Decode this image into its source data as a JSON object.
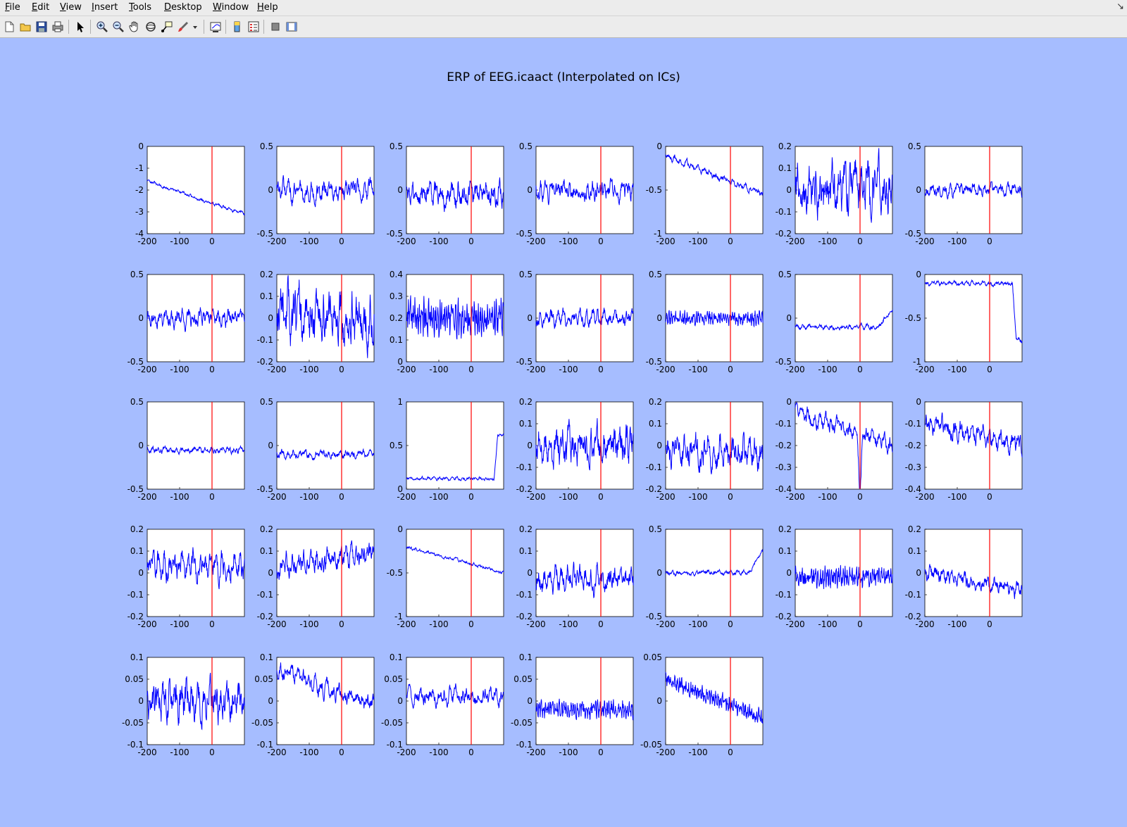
{
  "window": {
    "menu": [
      {
        "label": "File",
        "accel": "F"
      },
      {
        "label": "Edit",
        "accel": "E"
      },
      {
        "label": "View",
        "accel": "V"
      },
      {
        "label": "Insert",
        "accel": "I"
      },
      {
        "label": "Tools",
        "accel": "T"
      },
      {
        "label": "Desktop",
        "accel": "D"
      },
      {
        "label": "Window",
        "accel": "W"
      },
      {
        "label": "Help",
        "accel": "H"
      }
    ],
    "menu_corner": "↘",
    "toolbar": [
      "new-figure-icon",
      "open-file-icon",
      "save-icon",
      "print-icon",
      "edit-plot-arrow-icon",
      "zoom-in-icon",
      "zoom-out-icon",
      "pan-hand-icon",
      "rotate-3d-icon",
      "data-cursor-icon",
      "brush-icon",
      "brush-dropdown-icon",
      "link-plot-icon",
      "insert-colorbar-icon",
      "insert-legend-icon",
      "hide-plot-tools-icon",
      "show-plot-tools-icon"
    ],
    "colors": {
      "figure_bg": "#a6bdff",
      "trace": "#0000ff",
      "event_line": "#ff0000"
    }
  },
  "chart_data": {
    "type": "line",
    "title": "ERP of EEG.icaact (Interpolated on ICs)",
    "xlim": [
      -200,
      100
    ],
    "xticks": [
      -200,
      -100,
      0
    ],
    "event_marker_x": 0,
    "grid": false,
    "panels": [
      {
        "ylim": [
          -4,
          0
        ],
        "yticks": [
          "0",
          "-1",
          "-2",
          "-3",
          "-4"
        ],
        "shape": {
          "trend": [
            -1.6,
            -3.1
          ],
          "noise": 0.08
        }
      },
      {
        "ylim": [
          -0.5,
          0.5
        ],
        "yticks": [
          "0.5",
          "0",
          "-0.5"
        ],
        "shape": {
          "base": 0,
          "noise": 0.12
        }
      },
      {
        "ylim": [
          -0.5,
          0.5
        ],
        "yticks": [
          "0.5",
          "0",
          "-0.5"
        ],
        "shape": {
          "base": -0.05,
          "noise": 0.15
        }
      },
      {
        "ylim": [
          -0.5,
          0.5
        ],
        "yticks": [
          "0.5",
          "0",
          "-0.5"
        ],
        "shape": {
          "base": 0,
          "noise": 0.12
        }
      },
      {
        "ylim": [
          -1,
          0
        ],
        "yticks": [
          "0",
          "-0.5",
          "-1"
        ],
        "shape": {
          "trend": [
            -0.1,
            -0.55
          ],
          "noise": 0.04
        }
      },
      {
        "ylim": [
          -0.2,
          0.2
        ],
        "yticks": [
          "0.2",
          "0.1",
          "0",
          "-0.1",
          "-0.2"
        ],
        "shape": {
          "base": 0,
          "noise": 0.12
        }
      },
      {
        "ylim": [
          -0.5,
          0.5
        ],
        "yticks": [
          "0.5",
          "0",
          "-0.5"
        ],
        "shape": {
          "base": 0,
          "noise": 0.08
        }
      },
      {
        "ylim": [
          -0.5,
          0.5
        ],
        "yticks": [
          "0.5",
          "0",
          "-0.5"
        ],
        "shape": {
          "base": 0,
          "noise": 0.1
        }
      },
      {
        "ylim": [
          -0.2,
          0.2
        ],
        "yticks": [
          "0.2",
          "0.1",
          "0",
          "-0.1",
          "-0.2"
        ],
        "shape": {
          "base": 0,
          "noise": 0.13
        }
      },
      {
        "ylim": [
          0,
          0.4
        ],
        "yticks": [
          "0.4",
          "0.3",
          "0.2",
          "0.1",
          "0"
        ],
        "shape": {
          "base": 0.2,
          "noise": 0.11,
          "fast": true
        }
      },
      {
        "ylim": [
          -0.5,
          0.5
        ],
        "yticks": [
          "0.5",
          "0",
          "-0.5"
        ],
        "shape": {
          "base": 0,
          "noise": 0.1
        }
      },
      {
        "ylim": [
          -0.5,
          0.5
        ],
        "yticks": [
          "0.5",
          "0",
          "-0.5"
        ],
        "shape": {
          "base": 0,
          "noise": 0.1,
          "fast": true
        }
      },
      {
        "ylim": [
          -0.5,
          0.5
        ],
        "yticks": [
          "0.5",
          "0",
          "-0.5"
        ],
        "shape": {
          "base": -0.1,
          "noise": 0.03,
          "endrise": 0.2
        }
      },
      {
        "ylim": [
          -1,
          0
        ],
        "yticks": [
          "0",
          "-0.5",
          "-1"
        ],
        "shape": {
          "base": -0.1,
          "noise": 0.03,
          "step": [
            270,
            -0.65
          ]
        }
      },
      {
        "ylim": [
          -0.5,
          0.5
        ],
        "yticks": [
          "0.5",
          "0",
          "-0.5"
        ],
        "shape": {
          "base": -0.05,
          "noise": 0.04
        }
      },
      {
        "ylim": [
          -0.5,
          0.5
        ],
        "yticks": [
          "0.5",
          "0",
          "-0.5"
        ],
        "shape": {
          "base": -0.1,
          "noise": 0.05
        }
      },
      {
        "ylim": [
          0,
          1
        ],
        "yticks": [
          "1",
          "0.5",
          "0"
        ],
        "shape": {
          "base": 0.12,
          "noise": 0.02,
          "step": [
            270,
            0.5
          ]
        }
      },
      {
        "ylim": [
          -0.2,
          0.2
        ],
        "yticks": [
          "0.2",
          "0.1",
          "0",
          "-0.1",
          "-0.2"
        ],
        "shape": {
          "base": 0,
          "noise": 0.09
        }
      },
      {
        "ylim": [
          -0.2,
          0.2
        ],
        "yticks": [
          "0.2",
          "0.1",
          "0",
          "-0.1",
          "-0.2"
        ],
        "shape": {
          "base": -0.03,
          "noise": 0.08
        }
      },
      {
        "ylim": [
          -0.4,
          0
        ],
        "yticks": [
          "0",
          "-0.1",
          "-0.2",
          "-0.3",
          "-0.4"
        ],
        "shape": {
          "trend": [
            -0.05,
            -0.2
          ],
          "noise": 0.04,
          "dip": [
            200,
            -0.28
          ]
        }
      },
      {
        "ylim": [
          -0.4,
          0
        ],
        "yticks": [
          "0",
          "-0.1",
          "-0.2",
          "-0.3",
          "-0.4"
        ],
        "shape": {
          "trend": [
            -0.1,
            -0.2
          ],
          "noise": 0.05
        }
      },
      {
        "ylim": [
          -0.2,
          0.2
        ],
        "yticks": [
          "0.2",
          "0.1",
          "0",
          "-0.1",
          "-0.2"
        ],
        "shape": {
          "base": 0.03,
          "noise": 0.07
        }
      },
      {
        "ylim": [
          -0.2,
          0.2
        ],
        "yticks": [
          "0.2",
          "0.1",
          "0",
          "-0.1",
          "-0.2"
        ],
        "shape": {
          "trend": [
            0.03,
            0.1
          ],
          "noise": 0.06
        }
      },
      {
        "ylim": [
          -1,
          0
        ],
        "yticks": [
          "0",
          "-0.5",
          "-1"
        ],
        "shape": {
          "trend": [
            -0.2,
            -0.5
          ],
          "noise": 0.02
        }
      },
      {
        "ylim": [
          -0.2,
          0.2
        ],
        "yticks": [
          "0.2",
          "0.1",
          "0",
          "-0.1",
          "-0.2"
        ],
        "shape": {
          "base": -0.03,
          "noise": 0.06
        }
      },
      {
        "ylim": [
          -0.5,
          0.5
        ],
        "yticks": [
          "0.5",
          "0",
          "-0.5"
        ],
        "shape": {
          "base": 0,
          "noise": 0.03,
          "endrise": 0.25
        }
      },
      {
        "ylim": [
          -0.2,
          0.2
        ],
        "yticks": [
          "0.2",
          "0.1",
          "0",
          "-0.1",
          "-0.2"
        ],
        "shape": {
          "base": -0.02,
          "noise": 0.06,
          "fast": true
        }
      },
      {
        "ylim": [
          -0.2,
          0.2
        ],
        "yticks": [
          "0.2",
          "0.1",
          "0",
          "-0.1",
          "-0.2"
        ],
        "shape": {
          "trend": [
            0,
            -0.08
          ],
          "noise": 0.04
        }
      },
      {
        "ylim": [
          -0.1,
          0.1
        ],
        "yticks": [
          "0.1",
          "0.05",
          "0",
          "-0.05",
          "-0.1"
        ],
        "shape": {
          "base": 0,
          "noise": 0.05
        }
      },
      {
        "ylim": [
          -0.1,
          0.1
        ],
        "yticks": [
          "0.1",
          "0.05",
          "0",
          "-0.05",
          "-0.1"
        ],
        "shape": {
          "trend": [
            0.07,
            -0.01
          ],
          "noise": 0.02
        }
      },
      {
        "ylim": [
          -0.1,
          0.1
        ],
        "yticks": [
          "0.1",
          "0.05",
          "0",
          "-0.05",
          "-0.1"
        ],
        "shape": {
          "base": 0.01,
          "noise": 0.02
        }
      },
      {
        "ylim": [
          -0.1,
          0.1
        ],
        "yticks": [
          "0.1",
          "0.05",
          "0",
          "-0.05",
          "-0.1"
        ],
        "shape": {
          "base": -0.02,
          "noise": 0.025,
          "fast": true
        }
      },
      {
        "ylim": [
          -0.05,
          0.05
        ],
        "yticks": [
          "0.05",
          "0",
          "-0.05"
        ],
        "shape": {
          "trend": [
            0.025,
            -0.02
          ],
          "noise": 0.012,
          "fast": true
        }
      }
    ]
  }
}
